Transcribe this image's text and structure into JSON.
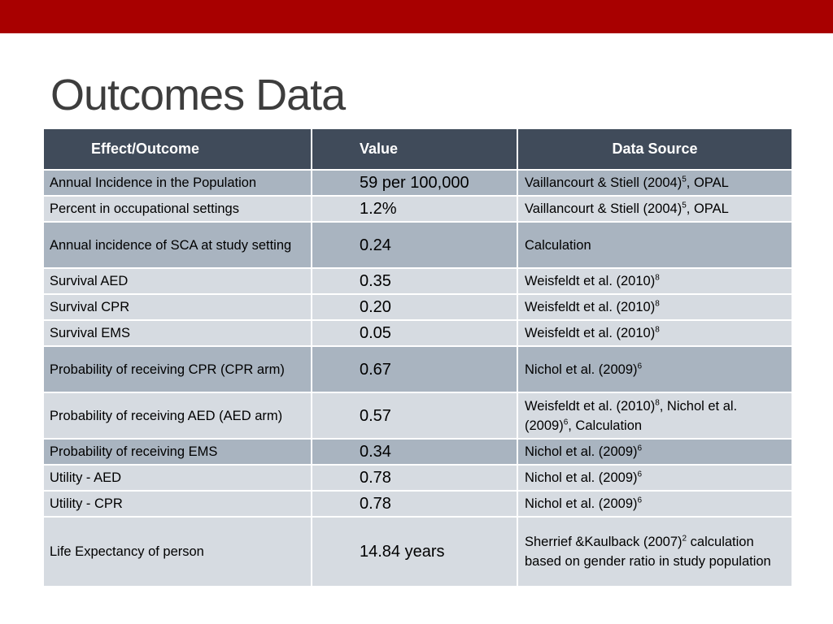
{
  "slide": {
    "title": "Outcomes Data",
    "colors": {
      "top_bar": "#a80000",
      "header_bg": "#404b5a",
      "row_dark": "#a9b4c0",
      "row_light": "#d6dbe1"
    }
  },
  "table": {
    "headers": {
      "outcome": "Effect/Outcome",
      "value": "Value",
      "source": "Data Source"
    },
    "rows": [
      {
        "outcome": "Annual Incidence in the Population",
        "value": "59 per 100,000",
        "source_a": "Vaillancourt & Stiell (2004)",
        "sup1": "5",
        "source_b": ", OPAL"
      },
      {
        "outcome": "Percent in occupational settings",
        "value": "1.2%",
        "source_a": "Vaillancourt & Stiell (2004)",
        "sup1": "5",
        "source_b": ",  OPAL"
      },
      {
        "outcome": "Annual incidence of SCA at study setting",
        "value": "0.24",
        "source_a": "Calculation"
      },
      {
        "outcome": "Survival AED",
        "value": "0.35",
        "source_a": "Weisfeldt et al. (2010)",
        "sup1": "8"
      },
      {
        "outcome": "Survival CPR",
        "value": "0.20",
        "source_a": "Weisfeldt et al. (2010)",
        "sup1": "8"
      },
      {
        "outcome": "Survival EMS",
        "value": "0.05",
        "source_a": "Weisfeldt et al. (2010)",
        "sup1": "8"
      },
      {
        "outcome": "Probability of receiving CPR (CPR arm)",
        "value": "0.67",
        "source_a": "Nichol et al. (2009)",
        "sup1": "6"
      },
      {
        "outcome": "Probability of receiving AED (AED arm)",
        "value": "0.57",
        "source_a": "Weisfeldt et al. (2010)",
        "sup1": "8",
        "source_b": ", Nichol et al. (2009)",
        "sup2": "6",
        "source_c": ", Calculation"
      },
      {
        "outcome": "Probability of receiving EMS",
        "value": "0.34",
        "source_a": "Nichol et al. (2009)",
        "sup1": "6"
      },
      {
        "outcome": "Utility  - AED",
        "value": "0.78",
        "source_a": "Nichol et al. (2009)",
        "sup1": "6"
      },
      {
        "outcome": "Utility - CPR",
        "value": "0.78",
        "source_a": "Nichol et al. (2009)",
        "sup1": "6"
      },
      {
        "outcome": "Life Expectancy of person",
        "value": "14.84 years",
        "source_a": "Sherrief &Kaulback (2007)",
        "sup1": "2",
        "source_b": " calculation based on gender ratio in study population"
      }
    ]
  }
}
